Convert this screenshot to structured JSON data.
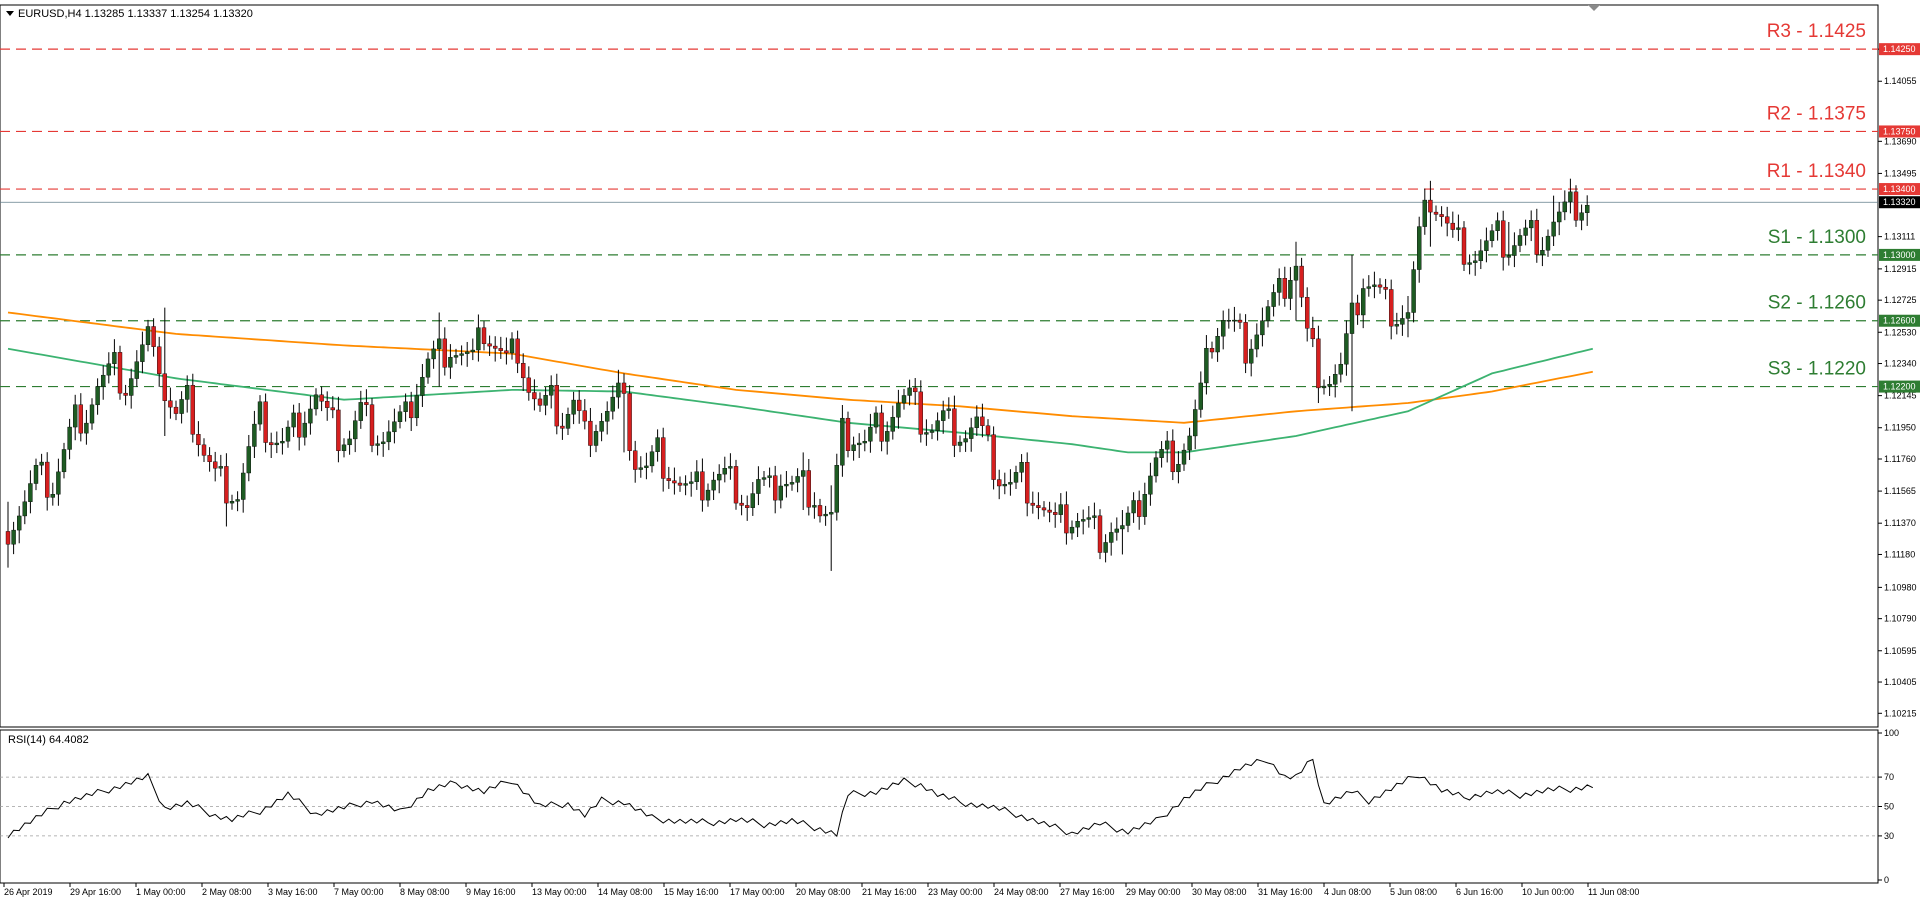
{
  "header": {
    "symbol_info": "EURUSD,H4  1.13285 1.13337 1.13254 1.13320"
  },
  "rsi_header": {
    "label": "RSI(14) 64.4082"
  },
  "colors": {
    "bull": "#1e5b23",
    "bear": "#d61f1f",
    "wick": "#000000",
    "ma_fast": "#3cb371",
    "ma_slow": "#ff8c00",
    "resistance": "#e53935",
    "support": "#2e7d32",
    "price_line": "#607d8b"
  },
  "chart_data": [
    {
      "type": "candlestick",
      "symbol": "EURUSD",
      "timeframe": "H4",
      "ohlc_header": {
        "open": 1.13285,
        "high": 1.13337,
        "low": 1.13254,
        "close": 1.1332
      },
      "ylim": [
        1.1015,
        1.145
      ],
      "y_ticks": [
        "1.14250",
        "1.14055",
        "1.13690",
        "1.13495",
        "1.13111",
        "1.12915",
        "1.12725",
        "1.12530",
        "1.12340",
        "1.12145",
        "1.11950",
        "1.11760",
        "1.11565",
        "1.11370",
        "1.11180",
        "1.10980",
        "1.10790",
        "1.10595",
        "1.10405",
        "1.10215"
      ],
      "x_ticks": [
        "26 Apr 2019",
        "29 Apr 16:00",
        "1 May 00:00",
        "2 May 08:00",
        "3 May 16:00",
        "7 May 00:00",
        "8 May 08:00",
        "9 May 16:00",
        "13 May 00:00",
        "14 May 08:00",
        "15 May 16:00",
        "17 May 00:00",
        "20 May 08:00",
        "21 May 16:00",
        "23 May 00:00",
        "24 May 08:00",
        "27 May 16:00",
        "29 May 00:00",
        "30 May 08:00",
        "31 May 16:00",
        "4 Jun 08:00",
        "5 Jun 08:00",
        "6 Jun 16:00",
        "10 Jun 00:00",
        "11 Jun 08:00"
      ],
      "current_price": {
        "value": 1.1332,
        "label": "1.13320"
      },
      "levels": [
        {
          "name": "R3 - 1.1425",
          "value": 1.1425,
          "tag": "1.14250",
          "kind": "resistance"
        },
        {
          "name": "R2 - 1.1375",
          "value": 1.1375,
          "tag": "1.13750",
          "kind": "resistance"
        },
        {
          "name": "R1 - 1.1340",
          "value": 1.134,
          "tag": "1.13400",
          "kind": "resistance"
        },
        {
          "name": "S1 - 1.1300",
          "value": 1.13,
          "tag": "1.13000",
          "kind": "support"
        },
        {
          "name": "S2 - 1.1260",
          "value": 1.126,
          "tag": "1.12600",
          "kind": "support"
        },
        {
          "name": "S3 - 1.1220",
          "value": 1.122,
          "tag": "1.12200",
          "kind": "support"
        }
      ],
      "close_path": [
        [
          0,
          1.1135
        ],
        [
          3,
          1.115
        ],
        [
          5,
          1.1165
        ],
        [
          8,
          1.116
        ],
        [
          10,
          1.118
        ],
        [
          12,
          1.12
        ],
        [
          14,
          1.1205
        ],
        [
          16,
          1.122
        ],
        [
          19,
          1.123
        ],
        [
          21,
          1.122
        ],
        [
          24,
          1.124
        ],
        [
          26,
          1.1255
        ],
        [
          28,
          1.1215
        ],
        [
          30,
          1.12
        ],
        [
          32,
          1.121
        ],
        [
          35,
          1.118
        ],
        [
          37,
          1.1165
        ],
        [
          39,
          1.116
        ],
        [
          41,
          1.1155
        ],
        [
          43,
          1.118
        ],
        [
          45,
          1.12
        ],
        [
          47,
          1.119
        ],
        [
          49,
          1.1185
        ],
        [
          52,
          1.12
        ],
        [
          55,
          1.1215
        ],
        [
          57,
          1.12
        ],
        [
          59,
          1.119
        ],
        [
          61,
          1.119
        ],
        [
          63,
          1.1205
        ],
        [
          65,
          1.1195
        ],
        [
          67,
          1.119
        ],
        [
          69,
          1.1195
        ],
        [
          71,
          1.12
        ],
        [
          73,
          1.122
        ],
        [
          75,
          1.1235
        ],
        [
          77,
          1.124
        ],
        [
          79,
          1.1245
        ],
        [
          81,
          1.124
        ],
        [
          83,
          1.1235
        ],
        [
          85,
          1.1255
        ],
        [
          87,
          1.1245
        ],
        [
          89,
          1.1235
        ],
        [
          91,
          1.1245
        ],
        [
          93,
          1.122
        ],
        [
          95,
          1.1205
        ],
        [
          97,
          1.121
        ],
        [
          99,
          1.12
        ],
        [
          101,
          1.121
        ],
        [
          103,
          1.119
        ],
        [
          105,
          1.12
        ],
        [
          107,
          1.1205
        ],
        [
          109,
          1.1215
        ],
        [
          110,
          1.1205
        ],
        [
          112,
          1.1175
        ],
        [
          114,
          1.117
        ],
        [
          116,
          1.118
        ],
        [
          118,
          1.117
        ],
        [
          120,
          1.116
        ],
        [
          122,
          1.1155
        ],
        [
          124,
          1.116
        ],
        [
          126,
          1.1165
        ],
        [
          128,
          1.1165
        ],
        [
          130,
          1.116
        ],
        [
          132,
          1.115
        ],
        [
          134,
          1.116
        ],
        [
          136,
          1.1155
        ],
        [
          138,
          1.1165
        ],
        [
          140,
          1.116
        ],
        [
          142,
          1.116
        ],
        [
          144,
          1.1155
        ],
        [
          145,
          1.1145
        ],
        [
          147,
          1.114
        ],
        [
          149,
          1.119
        ],
        [
          151,
          1.119
        ],
        [
          153,
          1.1185
        ],
        [
          155,
          1.1195
        ],
        [
          157,
          1.12
        ],
        [
          159,
          1.121
        ],
        [
          161,
          1.1212
        ],
        [
          163,
          1.12
        ],
        [
          165,
          1.1195
        ],
        [
          167,
          1.12
        ],
        [
          169,
          1.1195
        ],
        [
          171,
          1.1192
        ],
        [
          173,
          1.1198
        ],
        [
          175,
          1.118
        ],
        [
          177,
          1.1165
        ],
        [
          179,
          1.116
        ],
        [
          181,
          1.1165
        ],
        [
          183,
          1.1155
        ],
        [
          185,
          1.1145
        ],
        [
          187,
          1.1135
        ],
        [
          189,
          1.114
        ],
        [
          191,
          1.114
        ],
        [
          193,
          1.1135
        ],
        [
          195,
          1.113
        ],
        [
          197,
          1.1135
        ],
        [
          199,
          1.1132
        ],
        [
          201,
          1.114
        ],
        [
          203,
          1.116
        ],
        [
          205,
          1.1175
        ],
        [
          207,
          1.1178
        ],
        [
          209,
          1.118
        ],
        [
          211,
          1.119
        ],
        [
          213,
          1.1215
        ],
        [
          215,
          1.125
        ],
        [
          217,
          1.1262
        ],
        [
          219,
          1.1255
        ],
        [
          221,
          1.1245
        ],
        [
          223,
          1.1255
        ],
        [
          225,
          1.1265
        ],
        [
          227,
          1.1275
        ],
        [
          229,
          1.129
        ],
        [
          230,
          1.1295
        ],
        [
          232,
          1.125
        ],
        [
          234,
          1.123
        ],
        [
          236,
          1.1225
        ],
        [
          238,
          1.123
        ],
        [
          240,
          1.126
        ],
        [
          242,
          1.1285
        ],
        [
          244,
          1.128
        ],
        [
          246,
          1.127
        ],
        [
          248,
          1.1265
        ],
        [
          250,
          1.1265
        ],
        [
          252,
          1.131
        ],
        [
          254,
          1.1335
        ],
        [
          256,
          1.1325
        ],
        [
          258,
          1.131
        ],
        [
          260,
          1.1305
        ],
        [
          262,
          1.13
        ],
        [
          264,
          1.1305
        ],
        [
          266,
          1.131
        ],
        [
          268,
          1.1305
        ],
        [
          270,
          1.131
        ],
        [
          272,
          1.1312
        ],
        [
          274,
          1.131
        ],
        [
          276,
          1.132
        ],
        [
          278,
          1.1325
        ],
        [
          280,
          1.133
        ],
        [
          282,
          1.1332
        ]
      ],
      "wick_spikes": [
        [
          28,
          1.1268,
          1.119
        ],
        [
          0,
          1.115,
          1.111
        ],
        [
          39,
          1.117,
          1.1135
        ],
        [
          77,
          1.1265,
          1.122
        ],
        [
          110,
          1.1228,
          1.118
        ],
        [
          142,
          1.118,
          1.1145
        ],
        [
          147,
          1.116,
          1.1108
        ],
        [
          163,
          1.1215,
          1.119
        ],
        [
          199,
          1.1145,
          1.1118
        ],
        [
          230,
          1.1308,
          1.126
        ],
        [
          234,
          1.124,
          1.121
        ],
        [
          240,
          1.13,
          1.1205
        ],
        [
          250,
          1.1275,
          1.125
        ],
        [
          254,
          1.1345,
          1.1305
        ],
        [
          268,
          1.132,
          1.1295
        ],
        [
          276,
          1.1336,
          1.131
        ]
      ],
      "ma_fast": [
        [
          0,
          1.1243
        ],
        [
          30,
          1.1225
        ],
        [
          60,
          1.1212
        ],
        [
          90,
          1.1218
        ],
        [
          110,
          1.1217
        ],
        [
          130,
          1.1208
        ],
        [
          150,
          1.1198
        ],
        [
          170,
          1.1192
        ],
        [
          190,
          1.1185
        ],
        [
          200,
          1.118
        ],
        [
          210,
          1.118
        ],
        [
          230,
          1.119
        ],
        [
          250,
          1.1205
        ],
        [
          265,
          1.1228
        ],
        [
          283,
          1.1243
        ]
      ],
      "ma_slow": [
        [
          0,
          1.1265
        ],
        [
          30,
          1.1252
        ],
        [
          60,
          1.1245
        ],
        [
          90,
          1.124
        ],
        [
          110,
          1.1228
        ],
        [
          130,
          1.1218
        ],
        [
          150,
          1.1212
        ],
        [
          170,
          1.1208
        ],
        [
          190,
          1.1202
        ],
        [
          210,
          1.1198
        ],
        [
          230,
          1.1205
        ],
        [
          250,
          1.121
        ],
        [
          265,
          1.1217
        ],
        [
          283,
          1.1229
        ]
      ]
    },
    {
      "type": "line",
      "name": "RSI(14)",
      "value": 64.4082,
      "ylim": [
        0,
        100
      ],
      "y_ticks": [
        100,
        70,
        50,
        30,
        0
      ],
      "levels": [
        70,
        50,
        30
      ],
      "points": [
        [
          0,
          31
        ],
        [
          5,
          42
        ],
        [
          10,
          53
        ],
        [
          15,
          58
        ],
        [
          20,
          64
        ],
        [
          25,
          70
        ],
        [
          28,
          49
        ],
        [
          32,
          52
        ],
        [
          37,
          44
        ],
        [
          40,
          41
        ],
        [
          45,
          47
        ],
        [
          50,
          58
        ],
        [
          55,
          45
        ],
        [
          60,
          49
        ],
        [
          65,
          54
        ],
        [
          70,
          46
        ],
        [
          75,
          61
        ],
        [
          80,
          66
        ],
        [
          85,
          60
        ],
        [
          90,
          68
        ],
        [
          95,
          50
        ],
        [
          100,
          52
        ],
        [
          103,
          44
        ],
        [
          106,
          54
        ],
        [
          110,
          53
        ],
        [
          115,
          42
        ],
        [
          120,
          40
        ],
        [
          125,
          39
        ],
        [
          130,
          41
        ],
        [
          135,
          38
        ],
        [
          140,
          40
        ],
        [
          145,
          35
        ],
        [
          148,
          31
        ],
        [
          150,
          58
        ],
        [
          155,
          60
        ],
        [
          160,
          67
        ],
        [
          163,
          65
        ],
        [
          166,
          58
        ],
        [
          170,
          53
        ],
        [
          175,
          50
        ],
        [
          180,
          45
        ],
        [
          185,
          38
        ],
        [
          190,
          32
        ],
        [
          195,
          38
        ],
        [
          200,
          33
        ],
        [
          205,
          40
        ],
        [
          210,
          55
        ],
        [
          215,
          66
        ],
        [
          220,
          76
        ],
        [
          225,
          82
        ],
        [
          228,
          70
        ],
        [
          230,
          70
        ],
        [
          233,
          82
        ],
        [
          235,
          52
        ],
        [
          240,
          60
        ],
        [
          243,
          54
        ],
        [
          248,
          64
        ],
        [
          252,
          72
        ],
        [
          256,
          61
        ],
        [
          260,
          56
        ],
        [
          265,
          60
        ],
        [
          270,
          58
        ],
        [
          275,
          61
        ],
        [
          279,
          62
        ],
        [
          283,
          64
        ]
      ]
    }
  ]
}
